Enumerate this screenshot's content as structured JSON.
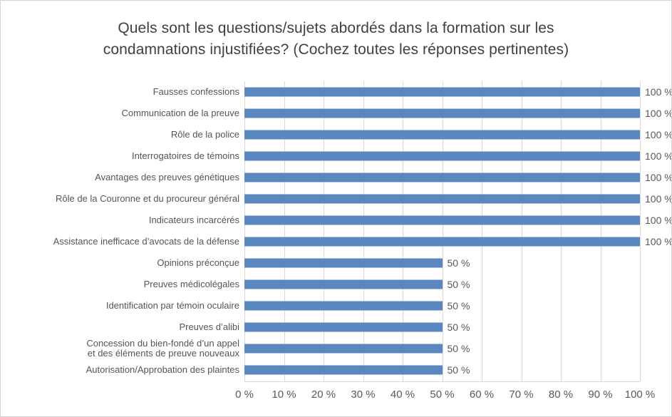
{
  "title_lines": [
    "Quels sont les questions/sujets abordés dans la formation sur les",
    "condamnations injustifiées? (Cochez toutes les réponses pertinentes)"
  ],
  "chart_data": {
    "type": "bar",
    "orientation": "horizontal",
    "title": "Quels sont les questions/sujets abordés dans la formation sur les condamnations injustifiées? (Cochez toutes les réponses pertinentes)",
    "categories": [
      "Fausses confessions",
      "Communication de la preuve",
      "Rôle de la police",
      "Interrogatoires de témoins",
      "Avantages des preuves génétiques",
      "Rôle de la Couronne et du procureur général",
      "Indicateurs incarcérés",
      "Assistance inefficace d’avocats de la défense",
      "Opinions préconçue",
      "Preuves médicolégales",
      "Identification par témoin oculaire",
      "Preuves d’alibi",
      "Concession du bien-fondé d’un appel\net des éléments de preuve nouveaux",
      "Autorisation/Approbation des plaintes"
    ],
    "values": [
      100,
      100,
      100,
      100,
      100,
      100,
      100,
      100,
      50,
      50,
      50,
      50,
      50,
      50
    ],
    "data_labels": [
      "100 %",
      "100 %",
      "100 %",
      "100 %",
      "100 %",
      "100 %",
      "100 %",
      "100 %",
      "50 %",
      "50 %",
      "50 %",
      "50 %",
      "50 %",
      "50 %"
    ],
    "x_ticks": [
      "0 %",
      "10 %",
      "20 %",
      "30 %",
      "40 %",
      "50 %",
      "60 %",
      "70 %",
      "80 %",
      "90 %",
      "100 %"
    ],
    "xlim": [
      0,
      100
    ],
    "grid": "vertical-10pct",
    "legend": "none",
    "colors": {
      "bar": "#5b87c1",
      "gridline": "#d9d9d9",
      "title_text": "#404040",
      "label_text": "#595959"
    }
  }
}
